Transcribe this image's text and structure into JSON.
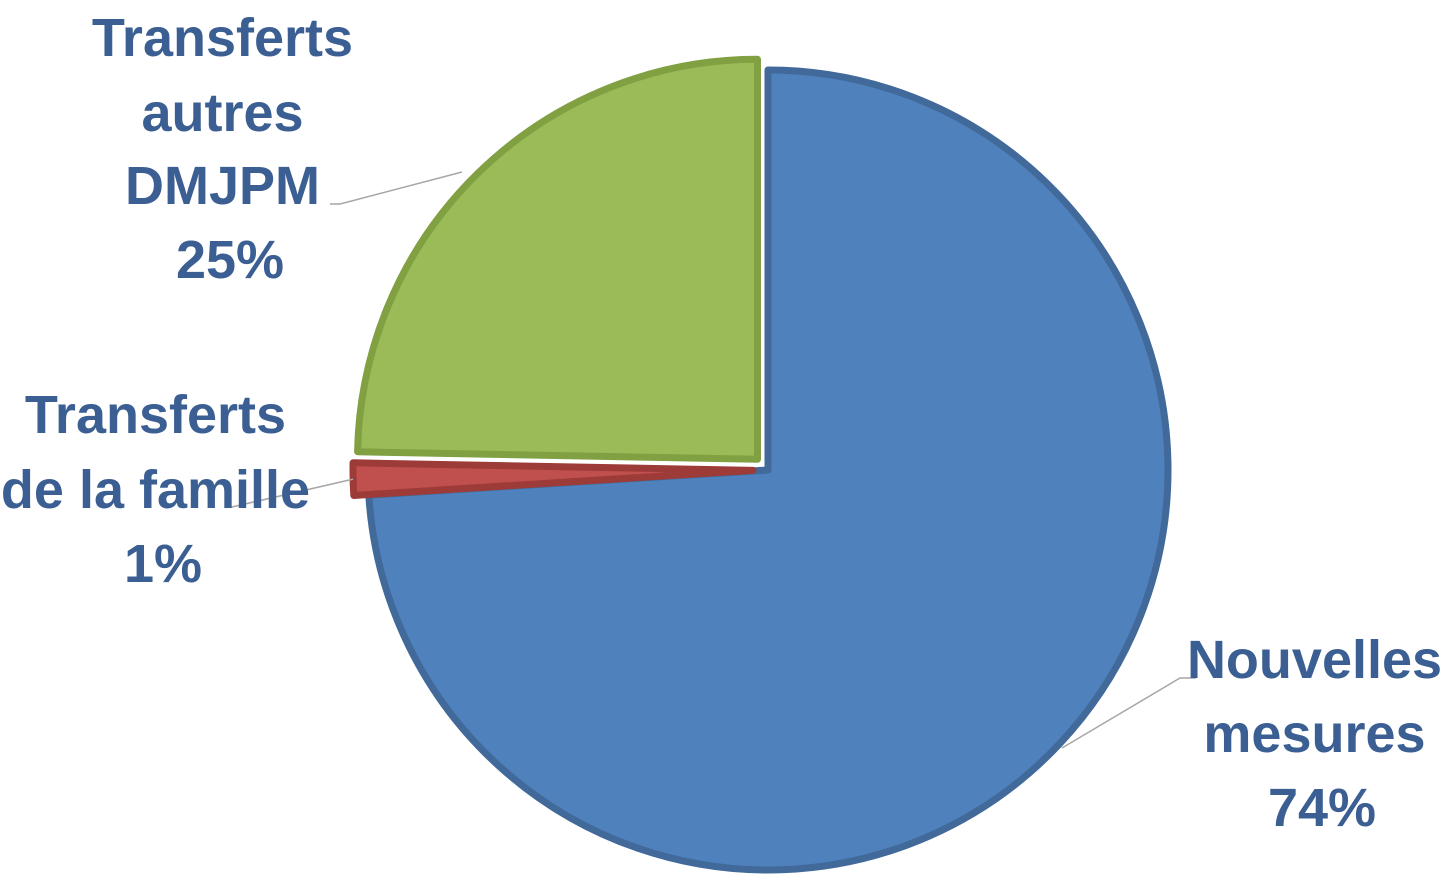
{
  "chart_data": {
    "type": "pie",
    "slices": [
      {
        "label_lines": [
          "Nouvelles",
          "mesures"
        ],
        "percent_label": "74%",
        "value": 74,
        "color": "#4f81bd",
        "stroke": "#41699a",
        "exploded": false
      },
      {
        "label_lines": [
          "Transferts",
          "de la famille"
        ],
        "percent_label": "1%",
        "value": 1.3,
        "color": "#c0504d",
        "stroke": "#9d3b38",
        "exploded": true
      },
      {
        "label_lines": [
          "Transferts",
          "autres",
          "DMJPM"
        ],
        "percent_label": "25%",
        "value": 24.7,
        "color": "#9bbb59",
        "stroke": "#80a042",
        "exploded": true
      }
    ],
    "start_angle_deg": 0,
    "direction": "clockwise",
    "legend": "none",
    "label_color": "#3b5f93",
    "leader_line_color": "#a6a6a6"
  }
}
